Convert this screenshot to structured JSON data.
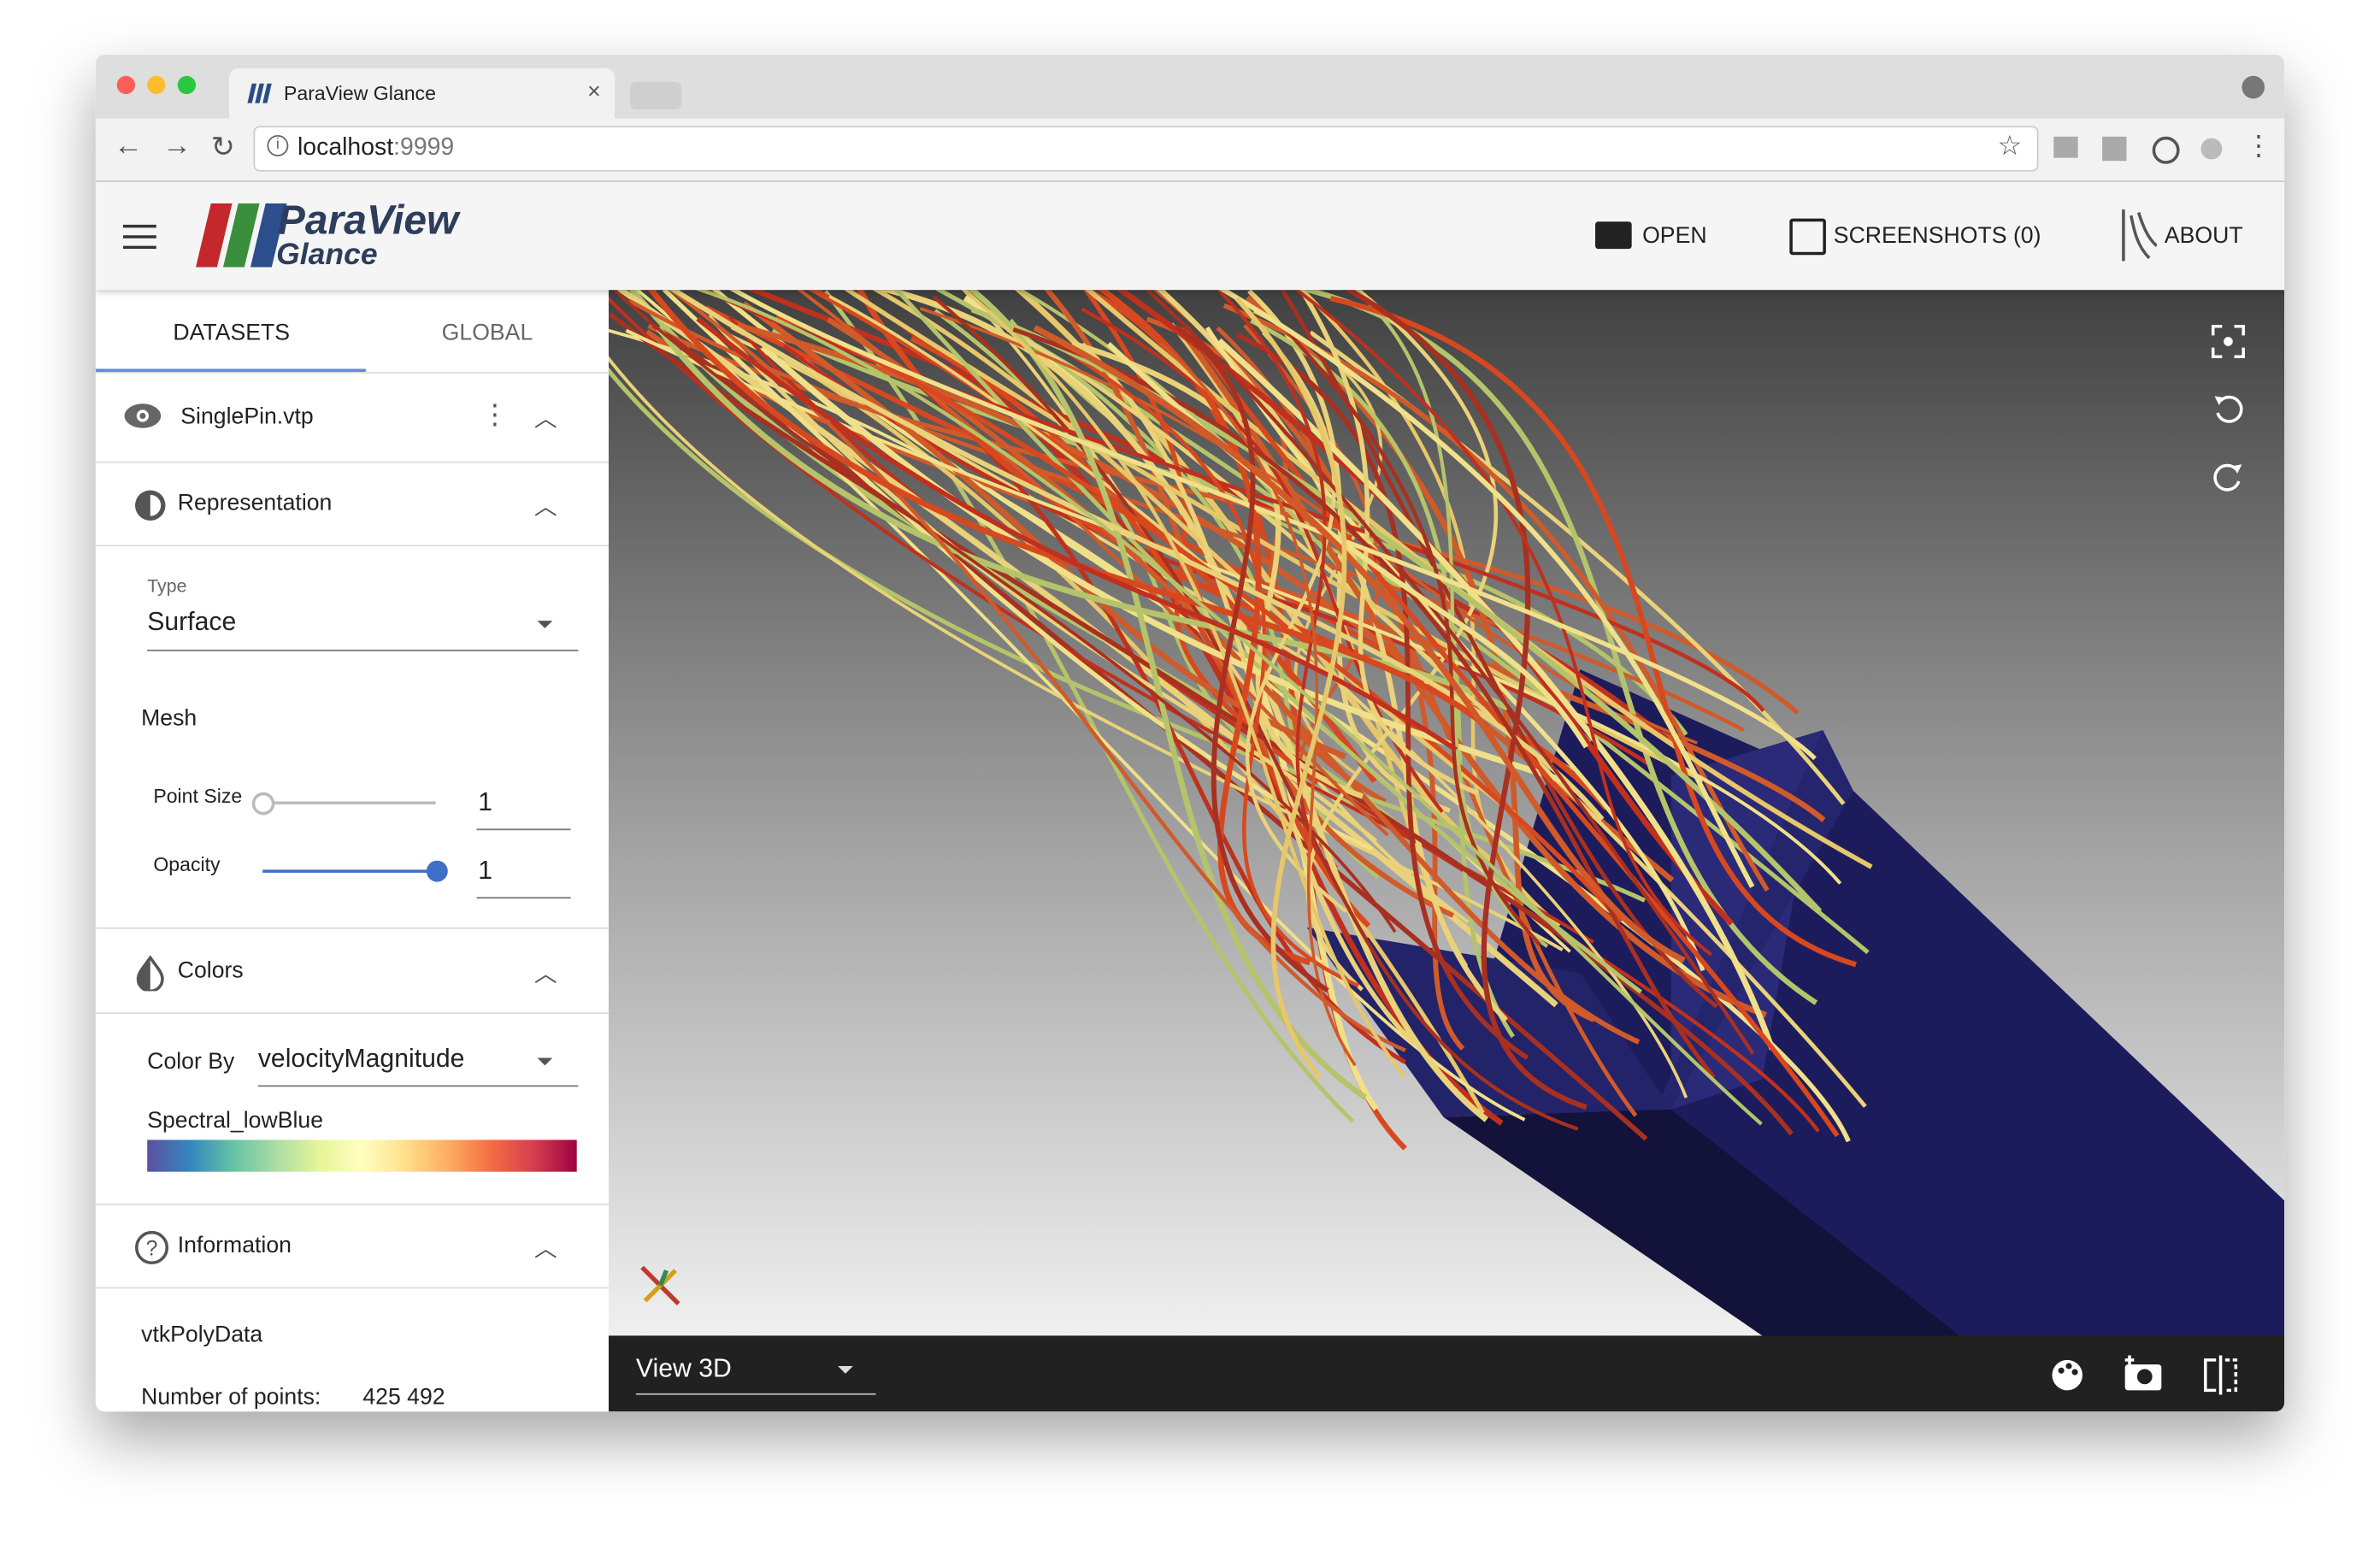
{
  "browser": {
    "tab_title": "ParaView Glance",
    "url_host": "localhost",
    "url_port": ":9999"
  },
  "app_bar": {
    "logo_main": "ParaView",
    "logo_sub": "Glance",
    "actions": [
      "OPEN",
      "SCREENSHOTS (0)",
      "ABOUT"
    ]
  },
  "sidebar": {
    "tabs": [
      "DATASETS",
      "GLOBAL"
    ],
    "dataset": "SinglePin.vtp",
    "representation": {
      "title": "Representation",
      "type_label": "Type",
      "type_value": "Surface",
      "mesh_title": "Mesh",
      "point_size_label": "Point Size",
      "point_size_value": "1",
      "opacity_label": "Opacity",
      "opacity_value": "1"
    },
    "colors": {
      "title": "Colors",
      "color_by_label": "Color By",
      "color_by_value": "velocityMagnitude",
      "colormap": "Spectral_lowBlue"
    },
    "information": {
      "title": "Information",
      "data_type": "vtkPolyData",
      "points_label": "Number of points:",
      "points_value": "425 492"
    }
  },
  "view": {
    "view_type": "View 3D"
  }
}
